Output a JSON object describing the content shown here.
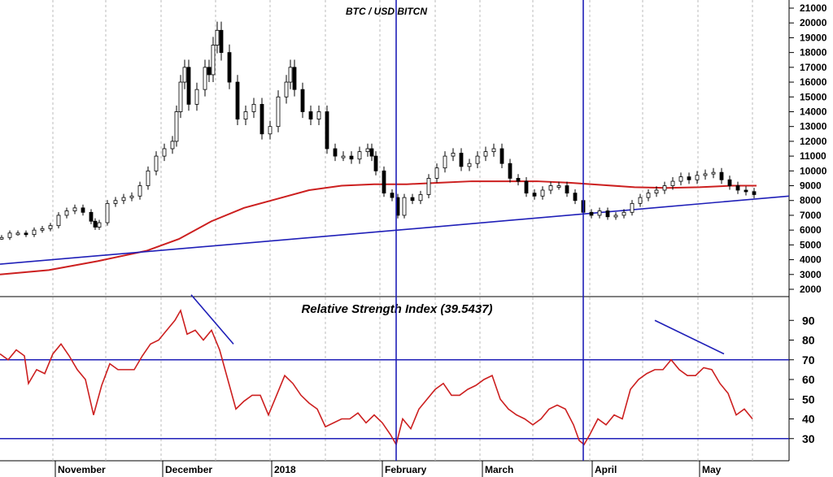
{
  "chart_data": [
    {
      "type": "candlestick",
      "title": "BTC / USD BITCN",
      "ylim": [
        2000,
        21000
      ],
      "y_ticks": [
        2000,
        3000,
        4000,
        5000,
        6000,
        7000,
        8000,
        9000,
        10000,
        11000,
        12000,
        13000,
        14000,
        15000,
        16000,
        17000,
        18000,
        19000,
        20000,
        21000
      ],
      "x_labels": [
        "November",
        "December",
        "2018",
        "February",
        "March",
        "April",
        "May"
      ],
      "grid": true,
      "price_close": [
        [
          0,
          5500
        ],
        [
          10,
          5800
        ],
        [
          20,
          5800
        ],
        [
          30,
          5700
        ],
        [
          40,
          6000
        ],
        [
          50,
          6100
        ],
        [
          60,
          6300
        ],
        [
          70,
          7000
        ],
        [
          80,
          7300
        ],
        [
          90,
          7500
        ],
        [
          100,
          7200
        ],
        [
          110,
          6600
        ],
        [
          115,
          6200
        ],
        [
          120,
          6500
        ],
        [
          130,
          7800
        ],
        [
          140,
          8000
        ],
        [
          150,
          8200
        ],
        [
          160,
          8300
        ],
        [
          170,
          9000
        ],
        [
          180,
          10000
        ],
        [
          190,
          11000
        ],
        [
          200,
          11500
        ],
        [
          210,
          12000
        ],
        [
          215,
          14000
        ],
        [
          220,
          16000
        ],
        [
          225,
          17000
        ],
        [
          230,
          14500
        ],
        [
          240,
          15500
        ],
        [
          250,
          17000
        ],
        [
          255,
          16500
        ],
        [
          260,
          18500
        ],
        [
          265,
          19500
        ],
        [
          270,
          18000
        ],
        [
          280,
          16000
        ],
        [
          290,
          13500
        ],
        [
          300,
          14000
        ],
        [
          310,
          14500
        ],
        [
          320,
          12500
        ],
        [
          330,
          13000
        ],
        [
          340,
          15000
        ],
        [
          350,
          16000
        ],
        [
          355,
          17000
        ],
        [
          360,
          15500
        ],
        [
          370,
          14000
        ],
        [
          380,
          13500
        ],
        [
          390,
          14000
        ],
        [
          400,
          11500
        ],
        [
          410,
          11000
        ],
        [
          420,
          11000
        ],
        [
          430,
          10800
        ],
        [
          440,
          11300
        ],
        [
          450,
          11500
        ],
        [
          455,
          11000
        ],
        [
          460,
          10000
        ],
        [
          470,
          8500
        ],
        [
          480,
          8200
        ],
        [
          487,
          7000
        ],
        [
          495,
          8200
        ],
        [
          505,
          8000
        ],
        [
          515,
          8400
        ],
        [
          525,
          9500
        ],
        [
          535,
          10200
        ],
        [
          545,
          11000
        ],
        [
          555,
          11200
        ],
        [
          565,
          10300
        ],
        [
          575,
          10500
        ],
        [
          585,
          11000
        ],
        [
          595,
          11300
        ],
        [
          605,
          11500
        ],
        [
          615,
          10500
        ],
        [
          625,
          9500
        ],
        [
          635,
          9300
        ],
        [
          645,
          8500
        ],
        [
          655,
          8300
        ],
        [
          665,
          8700
        ],
        [
          675,
          9000
        ],
        [
          685,
          9000
        ],
        [
          695,
          8500
        ],
        [
          705,
          8000
        ],
        [
          715,
          7200
        ],
        [
          725,
          7000
        ],
        [
          735,
          7300
        ],
        [
          745,
          6900
        ],
        [
          755,
          7000
        ],
        [
          765,
          7200
        ],
        [
          775,
          7800
        ],
        [
          785,
          8200
        ],
        [
          795,
          8500
        ],
        [
          805,
          8700
        ],
        [
          815,
          9000
        ],
        [
          825,
          9300
        ],
        [
          835,
          9600
        ],
        [
          845,
          9400
        ],
        [
          855,
          9700
        ],
        [
          865,
          9800
        ],
        [
          875,
          9900
        ],
        [
          885,
          9400
        ],
        [
          895,
          9000
        ],
        [
          905,
          8700
        ],
        [
          915,
          8600
        ],
        [
          925,
          8400
        ]
      ],
      "series": [
        {
          "name": "",
          "color": "#cc1f1f",
          "points": [
            [
              0,
              3000
            ],
            [
              60,
              3300
            ],
            [
              120,
              3900
            ],
            [
              180,
              4600
            ],
            [
              220,
              5400
            ],
            [
              260,
              6600
            ],
            [
              300,
              7500
            ],
            [
              340,
              8100
            ],
            [
              380,
              8700
            ],
            [
              420,
              9000
            ],
            [
              460,
              9100
            ],
            [
              500,
              9100
            ],
            [
              540,
              9200
            ],
            [
              580,
              9300
            ],
            [
              620,
              9300
            ],
            [
              660,
              9300
            ],
            [
              700,
              9200
            ],
            [
              740,
              9050
            ],
            [
              780,
              8900
            ],
            [
              820,
              8850
            ],
            [
              860,
              8900
            ],
            [
              900,
              9000
            ],
            [
              930,
              9000
            ]
          ]
        },
        {
          "name": "",
          "color": "#1f1fb8",
          "points": [
            [
              0,
              3700
            ],
            [
              487,
              5990
            ],
            [
              970,
              8300
            ]
          ]
        }
      ],
      "vertical_markers": [
        487,
        717
      ]
    },
    {
      "type": "line",
      "title": "Relative Strength Index (39.5437)",
      "ylim": [
        20,
        100
      ],
      "y_ticks": [
        30,
        40,
        50,
        60,
        70,
        80,
        90
      ],
      "reference_lines": [
        70,
        30
      ],
      "series": [
        {
          "name": "",
          "color": "#cc1f1f",
          "points": [
            [
              0,
              73
            ],
            [
              10,
              70
            ],
            [
              20,
              75
            ],
            [
              30,
              72
            ],
            [
              35,
              58
            ],
            [
              45,
              65
            ],
            [
              55,
              63
            ],
            [
              65,
              73
            ],
            [
              75,
              78
            ],
            [
              85,
              72
            ],
            [
              95,
              65
            ],
            [
              105,
              60
            ],
            [
              115,
              42
            ],
            [
              125,
              57
            ],
            [
              135,
              68
            ],
            [
              145,
              65
            ],
            [
              155,
              65
            ],
            [
              165,
              65
            ],
            [
              175,
              72
            ],
            [
              185,
              78
            ],
            [
              195,
              80
            ],
            [
              205,
              85
            ],
            [
              215,
              90
            ],
            [
              222,
              95
            ],
            [
              230,
              83
            ],
            [
              240,
              85
            ],
            [
              250,
              80
            ],
            [
              260,
              85
            ],
            [
              270,
              75
            ],
            [
              280,
              60
            ],
            [
              290,
              45
            ],
            [
              300,
              49
            ],
            [
              310,
              52
            ],
            [
              320,
              52
            ],
            [
              330,
              42
            ],
            [
              340,
              52
            ],
            [
              350,
              62
            ],
            [
              360,
              58
            ],
            [
              370,
              52
            ],
            [
              380,
              48
            ],
            [
              390,
              45
            ],
            [
              400,
              36
            ],
            [
              410,
              38
            ],
            [
              420,
              40
            ],
            [
              430,
              40
            ],
            [
              440,
              43
            ],
            [
              450,
              38
            ],
            [
              460,
              42
            ],
            [
              470,
              38
            ],
            [
              480,
              32
            ],
            [
              487,
              27
            ],
            [
              495,
              40
            ],
            [
              505,
              35
            ],
            [
              515,
              45
            ],
            [
              525,
              50
            ],
            [
              535,
              55
            ],
            [
              545,
              58
            ],
            [
              555,
              52
            ],
            [
              565,
              52
            ],
            [
              575,
              55
            ],
            [
              585,
              57
            ],
            [
              595,
              60
            ],
            [
              605,
              62
            ],
            [
              615,
              50
            ],
            [
              625,
              45
            ],
            [
              635,
              42
            ],
            [
              645,
              40
            ],
            [
              655,
              37
            ],
            [
              665,
              40
            ],
            [
              675,
              45
            ],
            [
              685,
              47
            ],
            [
              695,
              45
            ],
            [
              705,
              37
            ],
            [
              712,
              29
            ],
            [
              718,
              27
            ],
            [
              725,
              32
            ],
            [
              735,
              40
            ],
            [
              745,
              37
            ],
            [
              755,
              42
            ],
            [
              765,
              40
            ],
            [
              775,
              55
            ],
            [
              785,
              60
            ],
            [
              795,
              63
            ],
            [
              805,
              65
            ],
            [
              815,
              65
            ],
            [
              825,
              70
            ],
            [
              835,
              65
            ],
            [
              845,
              62
            ],
            [
              855,
              62
            ],
            [
              865,
              66
            ],
            [
              875,
              65
            ],
            [
              885,
              58
            ],
            [
              895,
              53
            ],
            [
              905,
              42
            ],
            [
              915,
              45
            ],
            [
              925,
              40
            ]
          ]
        },
        {
          "name": "",
          "color": "#1f1fb8",
          "points": []
        }
      ],
      "trend_segments": [
        {
          "color": "#1f1fb8",
          "from": [
            235,
            103
          ],
          "to": [
            287,
            78
          ]
        },
        {
          "color": "#1f1fb8",
          "from": [
            805,
            90
          ],
          "to": [
            890,
            73
          ]
        }
      ],
      "vertical_markers": [
        487,
        717
      ]
    }
  ]
}
